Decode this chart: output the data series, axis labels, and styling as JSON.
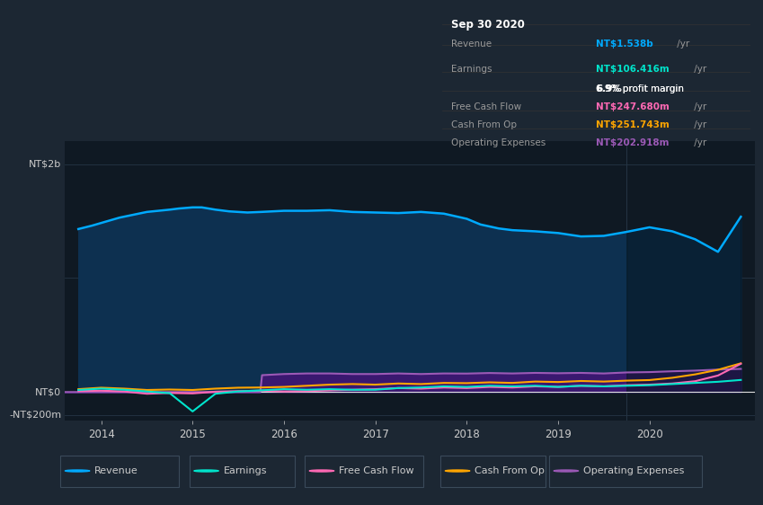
{
  "bg_color": "#0f1923",
  "fig_bg_color": "#1c2733",
  "title": "Sep 30 2020",
  "tooltip": {
    "Revenue": {
      "value": "NT$1.538b",
      "color": "#00aaff"
    },
    "Earnings": {
      "value": "NT$106.416m",
      "color": "#00e5cc"
    },
    "profit_margin": "6.9%",
    "Free Cash Flow": {
      "value": "NT$247.680m",
      "color": "#ff69b4"
    },
    "Cash From Op": {
      "value": "NT$251.743m",
      "color": "#ffa500"
    },
    "Operating Expenses": {
      "value": "NT$202.918m",
      "color": "#9b59b6"
    }
  },
  "ylabel_top": "NT$2b",
  "ylabel_zero": "NT$0",
  "ylabel_neg": "-NT$200m",
  "ylim": [
    -250,
    2200
  ],
  "ytick_vals": [
    2000,
    1000,
    0,
    -200
  ],
  "xlim_start": 2013.6,
  "xlim_end": 2021.15,
  "shaded_region_start": 2019.75,
  "xticks": [
    2014,
    2015,
    2016,
    2017,
    2018,
    2019,
    2020
  ],
  "legend": [
    {
      "label": "Revenue",
      "color": "#00aaff"
    },
    {
      "label": "Earnings",
      "color": "#00e5cc"
    },
    {
      "label": "Free Cash Flow",
      "color": "#ff69b4"
    },
    {
      "label": "Cash From Op",
      "color": "#ffa500"
    },
    {
      "label": "Operating Expenses",
      "color": "#9b59b6"
    }
  ],
  "revenue": {
    "x": [
      2013.75,
      2013.9,
      2014.2,
      2014.5,
      2014.75,
      2014.85,
      2015.0,
      2015.1,
      2015.25,
      2015.4,
      2015.6,
      2015.75,
      2016.0,
      2016.25,
      2016.5,
      2016.75,
      2017.0,
      2017.25,
      2017.5,
      2017.75,
      2018.0,
      2018.15,
      2018.35,
      2018.5,
      2018.75,
      2019.0,
      2019.25,
      2019.5,
      2019.75,
      2020.0,
      2020.25,
      2020.5,
      2020.75,
      2021.0
    ],
    "y": [
      1430,
      1460,
      1530,
      1580,
      1600,
      1610,
      1620,
      1620,
      1600,
      1585,
      1575,
      1580,
      1590,
      1590,
      1595,
      1580,
      1575,
      1570,
      1580,
      1565,
      1520,
      1470,
      1435,
      1420,
      1410,
      1395,
      1365,
      1370,
      1405,
      1445,
      1410,
      1340,
      1230,
      1538
    ],
    "color": "#00aaff",
    "fill_color": "#0d3050"
  },
  "earnings": {
    "x": [
      2013.75,
      2014.0,
      2014.25,
      2014.5,
      2014.75,
      2015.0,
      2015.25,
      2015.5,
      2015.75,
      2016.0,
      2016.25,
      2016.5,
      2016.75,
      2017.0,
      2017.25,
      2017.5,
      2017.75,
      2018.0,
      2018.25,
      2018.5,
      2018.75,
      2019.0,
      2019.25,
      2019.5,
      2019.75,
      2020.0,
      2020.25,
      2020.5,
      2020.75,
      2021.0
    ],
    "y": [
      18,
      30,
      20,
      5,
      -10,
      -170,
      -15,
      5,
      15,
      25,
      20,
      25,
      20,
      20,
      35,
      40,
      50,
      45,
      55,
      50,
      55,
      45,
      55,
      50,
      55,
      60,
      70,
      80,
      90,
      106
    ],
    "color": "#00e5cc"
  },
  "free_cash_flow": {
    "x": [
      2013.75,
      2014.0,
      2014.25,
      2014.5,
      2014.75,
      2015.0,
      2015.25,
      2015.5,
      2015.75,
      2016.0,
      2016.25,
      2016.5,
      2016.75,
      2017.0,
      2017.25,
      2017.5,
      2017.75,
      2018.0,
      2018.25,
      2018.5,
      2018.75,
      2019.0,
      2019.25,
      2019.5,
      2019.75,
      2020.0,
      2020.25,
      2020.5,
      2020.75,
      2021.0
    ],
    "y": [
      8,
      12,
      5,
      -15,
      -8,
      -12,
      3,
      8,
      12,
      5,
      8,
      15,
      20,
      25,
      35,
      30,
      40,
      35,
      45,
      40,
      50,
      45,
      55,
      50,
      60,
      65,
      75,
      95,
      145,
      248
    ],
    "color": "#ff69b4"
  },
  "cash_from_op": {
    "x": [
      2013.75,
      2014.0,
      2014.25,
      2014.5,
      2014.75,
      2015.0,
      2015.25,
      2015.5,
      2015.75,
      2016.0,
      2016.25,
      2016.5,
      2016.75,
      2017.0,
      2017.25,
      2017.5,
      2017.75,
      2018.0,
      2018.25,
      2018.5,
      2018.75,
      2019.0,
      2019.25,
      2019.5,
      2019.75,
      2020.0,
      2020.25,
      2020.5,
      2020.75,
      2021.0
    ],
    "y": [
      25,
      38,
      30,
      18,
      22,
      18,
      30,
      38,
      40,
      45,
      55,
      65,
      70,
      65,
      75,
      70,
      80,
      78,
      85,
      80,
      92,
      88,
      97,
      92,
      100,
      105,
      125,
      155,
      195,
      252
    ],
    "color": "#ffa500"
  },
  "operating_expenses": {
    "x": [
      2013.6,
      2015.74,
      2015.76,
      2016.0,
      2016.25,
      2016.5,
      2016.75,
      2017.0,
      2017.25,
      2017.5,
      2017.75,
      2018.0,
      2018.25,
      2018.5,
      2018.75,
      2019.0,
      2019.25,
      2019.5,
      2019.75,
      2020.0,
      2020.25,
      2020.5,
      2020.75,
      2021.0
    ],
    "y": [
      0,
      0,
      148,
      158,
      163,
      163,
      158,
      158,
      163,
      158,
      163,
      162,
      167,
      163,
      168,
      165,
      168,
      163,
      172,
      175,
      182,
      188,
      197,
      203
    ],
    "color": "#9b59b6",
    "fill_color": "#3a1870"
  },
  "grid_color": "#253545",
  "zero_line_color": "#e0e0e0"
}
